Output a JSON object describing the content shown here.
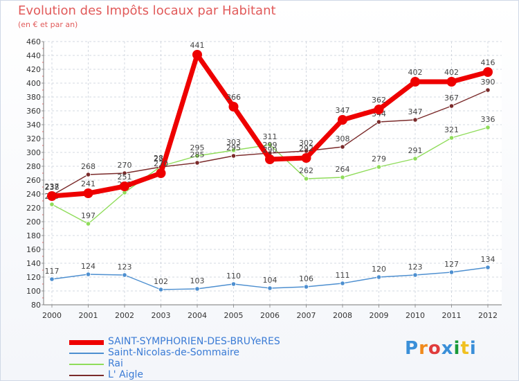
{
  "chart_data": {
    "type": "line",
    "title": "Evolution des Impôts locaux par Habitant",
    "subtitle": "(en € et par an)",
    "categories": [
      "2000",
      "2001",
      "2002",
      "2003",
      "2004",
      "2005",
      "2006",
      "2007",
      "2008",
      "2009",
      "2010",
      "2011",
      "2012"
    ],
    "ylim": [
      80,
      460
    ],
    "yticks": [
      80,
      100,
      120,
      140,
      160,
      180,
      200,
      220,
      240,
      260,
      280,
      300,
      320,
      340,
      360,
      380,
      400,
      420,
      440,
      460
    ],
    "series": [
      {
        "name": "SAINT-SYMPHORIEN-DES-BRUYeRES",
        "color": "#ee0000",
        "values": [
          237,
          241,
          251,
          270,
          441,
          366,
          290,
          292,
          347,
          362,
          402,
          402,
          416
        ]
      },
      {
        "name": "Saint-Nicolas-de-Sommaire",
        "color": "#4d8fd0",
        "values": [
          117,
          124,
          123,
          102,
          103,
          110,
          104,
          106,
          111,
          120,
          123,
          127,
          134
        ]
      },
      {
        "name": "Rai",
        "color": "#8fdc5a",
        "values": [
          225,
          197,
          242,
          280,
          295,
          303,
          311,
          262,
          264,
          279,
          291,
          321,
          336
        ]
      },
      {
        "name": "L' Aigle",
        "color": "#7a2a2a",
        "values": [
          238,
          268,
          270,
          279,
          285,
          295,
          299,
          302,
          308,
          344,
          347,
          367,
          390
        ]
      }
    ]
  },
  "branding": {
    "logo_text": "Proxiti",
    "logo_colors": [
      "#3a8fd8",
      "#f08a1c",
      "#e03c3c",
      "#3a8fd8",
      "#1a9a3a",
      "#f0c020",
      "#3a8fd8"
    ]
  }
}
